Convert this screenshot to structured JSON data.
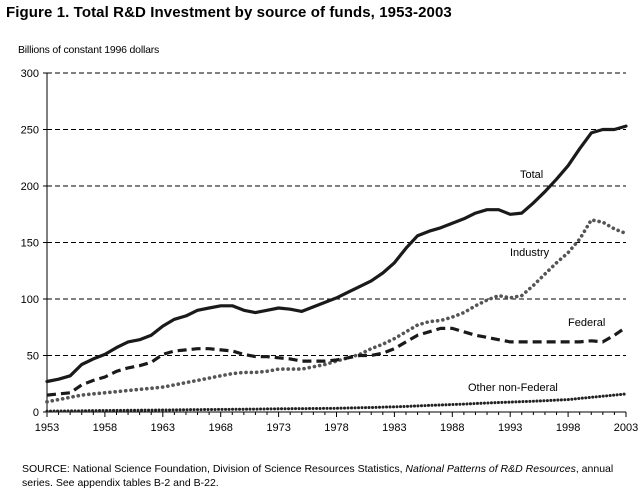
{
  "figure": {
    "title": "Figure 1.  Total R&D Investment by source of funds, 1953-2003",
    "source_prefix": "SOURCE:  National Science Foundation, Division of Science Resources Statistics, ",
    "source_italic": "National Patterns of R&D Resources",
    "source_suffix": ", annual series. See appendix tables B-2 and B-22."
  },
  "chart_data": {
    "type": "line",
    "ylabel": "Billions of constant 1996 dollars",
    "xlabel": "",
    "ylim": [
      0,
      300
    ],
    "yticks": [
      0,
      50,
      100,
      150,
      200,
      250,
      300
    ],
    "xlim": [
      1953,
      2003
    ],
    "xticks": [
      1953,
      1958,
      1963,
      1968,
      1973,
      1978,
      1983,
      1988,
      1993,
      1998,
      2003
    ],
    "grid": "horizontal dashed",
    "legend": "inline labels",
    "x": [
      1953,
      1954,
      1955,
      1956,
      1957,
      1958,
      1959,
      1960,
      1961,
      1962,
      1963,
      1964,
      1965,
      1966,
      1967,
      1968,
      1969,
      1970,
      1971,
      1972,
      1973,
      1974,
      1975,
      1976,
      1977,
      1978,
      1979,
      1980,
      1981,
      1982,
      1983,
      1984,
      1985,
      1986,
      1987,
      1988,
      1989,
      1990,
      1991,
      1992,
      1993,
      1994,
      1995,
      1996,
      1997,
      1998,
      1999,
      2000,
      2001,
      2002,
      2003
    ],
    "series": [
      {
        "name": "Total",
        "style": "solid",
        "color": "#1a1a1a",
        "values": [
          27,
          29,
          32,
          42,
          47,
          51,
          57,
          62,
          64,
          68,
          76,
          82,
          85,
          90,
          92,
          94,
          94,
          90,
          88,
          90,
          92,
          91,
          89,
          93,
          97,
          101,
          106,
          111,
          116,
          123,
          132,
          145,
          156,
          160,
          163,
          167,
          171,
          176,
          179,
          179,
          175,
          176,
          185,
          195,
          206,
          218,
          233,
          247,
          250,
          250,
          253
        ]
      },
      {
        "name": "Industry",
        "style": "dotted",
        "color": "#555555",
        "values": [
          9,
          11,
          13,
          15,
          16,
          17,
          18,
          19,
          20,
          21,
          22,
          24,
          26,
          28,
          30,
          32,
          34,
          35,
          35,
          36,
          38,
          38,
          38,
          40,
          42,
          45,
          48,
          51,
          56,
          60,
          65,
          71,
          77,
          80,
          81,
          84,
          88,
          94,
          99,
          103,
          101,
          103,
          112,
          122,
          132,
          141,
          153,
          170,
          168,
          162,
          158
        ]
      },
      {
        "name": "Federal",
        "style": "dashed",
        "color": "#1a1a1a",
        "values": [
          15,
          16,
          17,
          24,
          28,
          31,
          36,
          39,
          41,
          44,
          51,
          54,
          55,
          56,
          56,
          55,
          54,
          51,
          49,
          49,
          48,
          47,
          45,
          45,
          45,
          46,
          48,
          50,
          50,
          52,
          56,
          62,
          68,
          71,
          74,
          74,
          71,
          68,
          66,
          64,
          62,
          62,
          62,
          62,
          62,
          62,
          62,
          63,
          62,
          68,
          75
        ]
      },
      {
        "name": "Other non-Federal",
        "style": "dense-dotted",
        "color": "#222222",
        "values": [
          0.8,
          0.9,
          1,
          1.1,
          1.2,
          1.3,
          1.4,
          1.5,
          1.6,
          1.7,
          1.8,
          1.9,
          2,
          2.1,
          2.2,
          2.3,
          2.4,
          2.5,
          2.6,
          2.7,
          2.8,
          2.9,
          3,
          3.1,
          3.2,
          3.3,
          3.5,
          3.8,
          4,
          4.3,
          4.6,
          5,
          5.4,
          5.8,
          6.2,
          6.6,
          7,
          7.5,
          8,
          8.4,
          8.8,
          9.2,
          9.6,
          10,
          10.5,
          11,
          12,
          13,
          14,
          15,
          16
        ]
      }
    ],
    "labels": [
      {
        "text": "Total",
        "series": "Total"
      },
      {
        "text": "Industry",
        "series": "Industry"
      },
      {
        "text": "Federal",
        "series": "Federal"
      },
      {
        "text": "Other non-Federal",
        "series": "Other non-Federal"
      }
    ]
  }
}
